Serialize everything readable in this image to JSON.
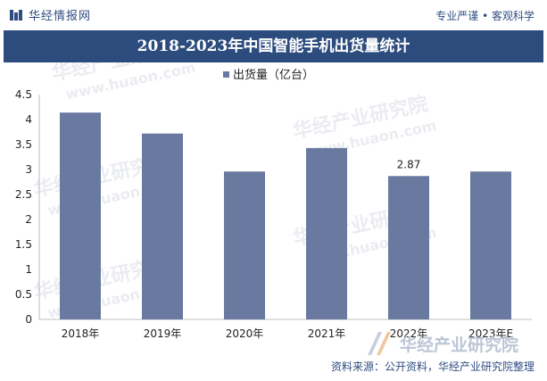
{
  "header": {
    "brand": "华经情报网",
    "slogan": "专业严谨 • 客观科学"
  },
  "title": "2018-2023年中国智能手机出货量统计",
  "footer": {
    "source": "资料来源：公开资料，华经产业研究院整理",
    "logo_text": "华经产业研究院"
  },
  "watermarks": [
    "华经产业研究院",
    "www.huaon.com"
  ],
  "colors": {
    "bar": "#69799f",
    "title_bg": "#2d4c7e",
    "text_dark": "#2f4d80"
  },
  "chart_data": {
    "type": "bar",
    "categories": [
      "2018年",
      "2019年",
      "2020年",
      "2021年",
      "2022年",
      "2023年E"
    ],
    "series": [
      {
        "name": "出货量（亿台）",
        "values": [
          4.14,
          3.72,
          2.96,
          3.43,
          2.87,
          2.96
        ]
      }
    ],
    "data_labels": [
      null,
      null,
      null,
      null,
      "2.87",
      null
    ],
    "yticks": [
      "0",
      "0.5",
      "1",
      "1.5",
      "2",
      "2.5",
      "3",
      "3.5",
      "4",
      "4.5"
    ],
    "ylim": [
      0,
      4.5
    ],
    "legend_position": "top-center",
    "grid": false
  }
}
